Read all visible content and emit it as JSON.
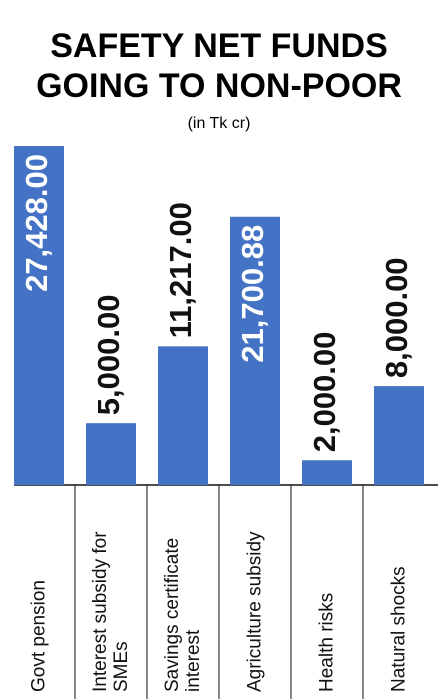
{
  "chart_data": {
    "type": "bar",
    "title": "SAFETY NET FUNDS GOING TO NON-POOR",
    "subtitle": "(in Tk cr)",
    "categories": [
      "Govt pension",
      "Interest subsidy for SMEs",
      "Savings certificate interest",
      "Agriculture subsidy",
      "Health risks",
      "Natural shocks"
    ],
    "values": [
      27428,
      5000,
      11217,
      21700.88,
      2000,
      8000
    ],
    "value_labels": [
      "27,428.00",
      "5,000.00",
      "11,217.00",
      "21,700.88",
      "2,000.00",
      "8,000.00"
    ],
    "color": "#4472c4"
  }
}
